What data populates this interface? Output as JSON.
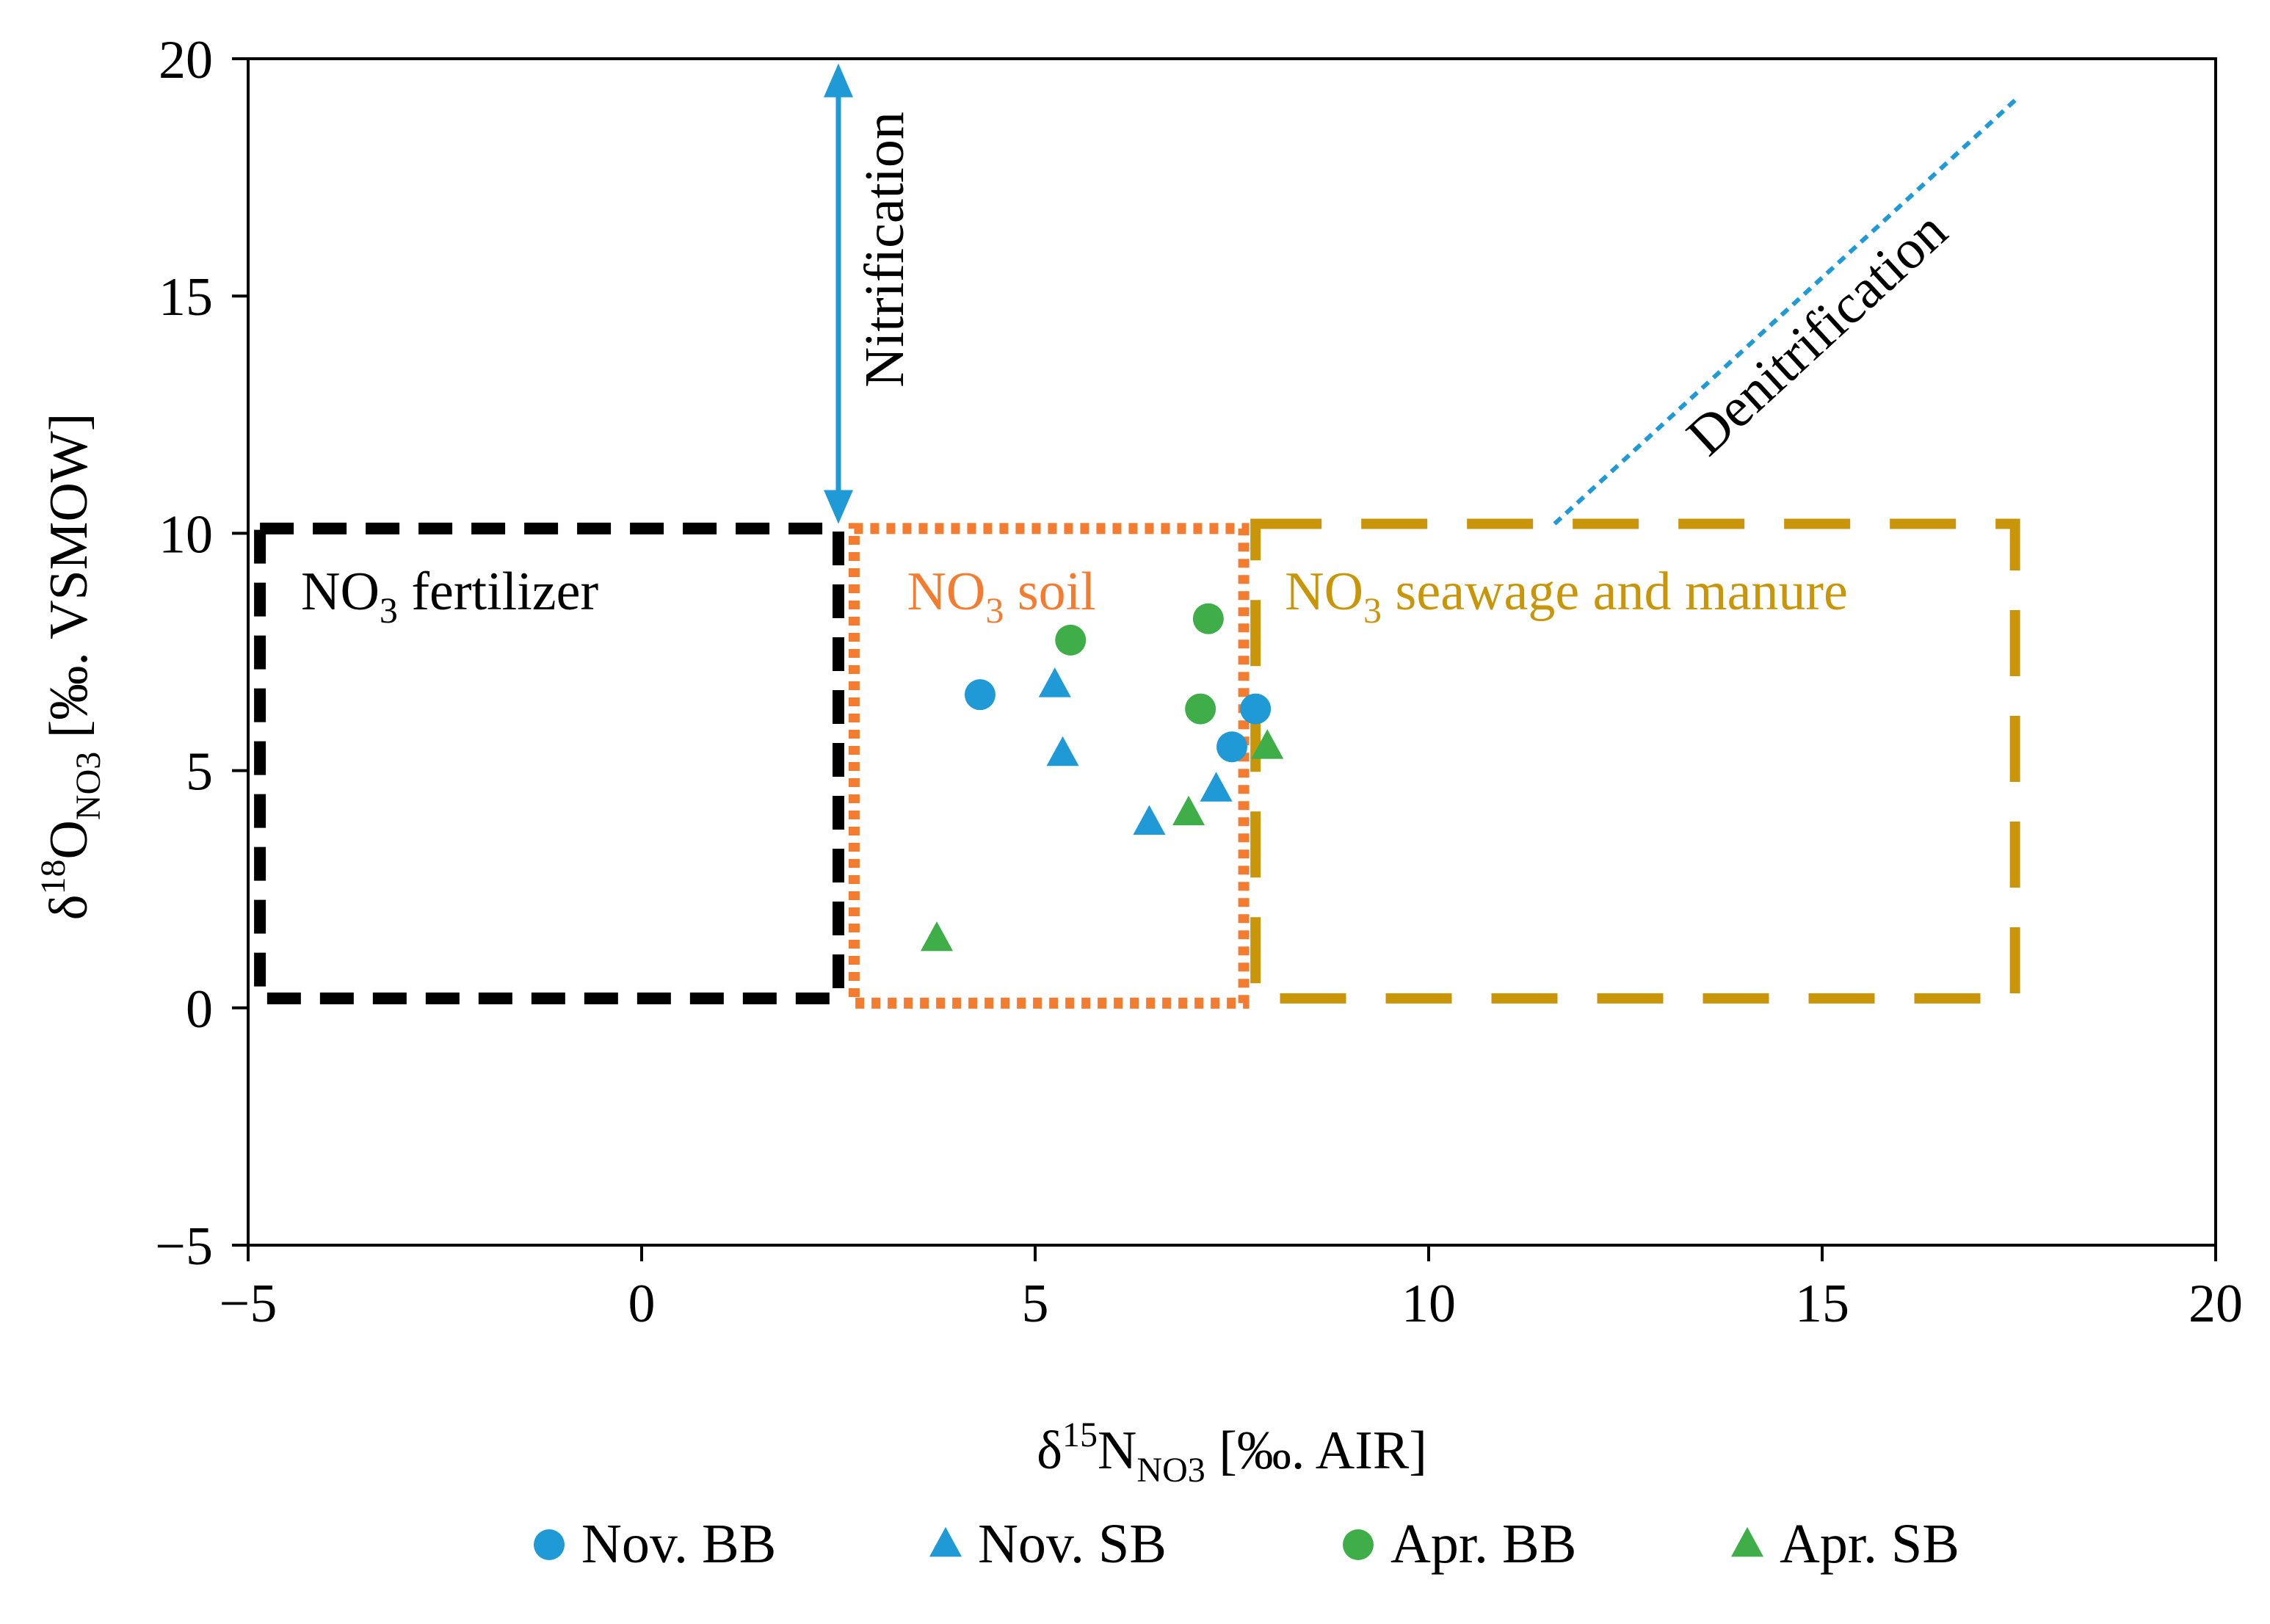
{
  "colors": {
    "nov": "#1f9ad6",
    "apr": "#3fae49",
    "axis": "#000000",
    "fertilizer": "#000000",
    "soil": "#f47c30",
    "seawage": "#c9960a",
    "nitrification": "#1f9ad6",
    "denitrification": "#1f9ad6"
  },
  "chart_data": {
    "type": "scatter",
    "title": "",
    "xlabel": {
      "prefix": "δ",
      "sup": "15",
      "main": "N",
      "sub": "NO3",
      "suffix": " [‰. AIR]"
    },
    "ylabel": {
      "prefix": "δ",
      "sup": "18",
      "main": "O",
      "sub": "NO3",
      "suffix": " [‰. VSMOW]"
    },
    "xlim": [
      -5,
      20
    ],
    "ylim": [
      -5,
      20
    ],
    "xticks": [
      -5,
      0,
      5,
      10,
      15,
      20
    ],
    "yticks": [
      -5,
      0,
      5,
      10,
      15,
      20
    ],
    "x_tick_labels": [
      "−5",
      "0",
      "5",
      "10",
      "15",
      "20"
    ],
    "y_tick_labels": [
      "−5",
      "0",
      "5",
      "10",
      "15",
      "20"
    ],
    "legend_position": "bottom",
    "series": [
      {
        "name": "Nov. BB",
        "marker": "circle",
        "color": "#1f9ad6",
        "points": [
          [
            4.3,
            6.6
          ],
          [
            7.5,
            5.5
          ],
          [
            7.8,
            6.3
          ]
        ]
      },
      {
        "name": "Nov. SB",
        "marker": "triangle",
        "color": "#1f9ad6",
        "points": [
          [
            5.25,
            6.8
          ],
          [
            5.35,
            5.35
          ],
          [
            6.45,
            3.9
          ],
          [
            7.3,
            4.6
          ]
        ]
      },
      {
        "name": "Apr. BB",
        "marker": "circle",
        "color": "#3fae49",
        "points": [
          [
            5.45,
            7.75
          ],
          [
            7.2,
            8.2
          ],
          [
            7.1,
            6.3
          ]
        ]
      },
      {
        "name": "Apr. SB",
        "marker": "triangle",
        "color": "#3fae49",
        "points": [
          [
            3.75,
            1.45
          ],
          [
            6.95,
            4.1
          ],
          [
            7.95,
            5.5
          ]
        ]
      }
    ],
    "regions": [
      {
        "name": "NO3 fertilizer",
        "label_main": "NO",
        "label_sub": "3",
        "label_rest": "  fertilizer",
        "x": [
          -4.85,
          2.5
        ],
        "y": [
          0.2,
          10.1
        ],
        "style": "dashed",
        "color": "#000000"
      },
      {
        "name": "NO3 soil",
        "label_main": "NO",
        "label_sub": "3",
        "label_rest": " soil",
        "x": [
          2.7,
          7.65
        ],
        "y": [
          0.1,
          10.1
        ],
        "style": "dotted",
        "color": "#f47c30"
      },
      {
        "name": "NO3 seawage and manure",
        "label_main": "NO",
        "label_sub": "3",
        "label_rest": " seawage and manure",
        "x": [
          7.8,
          17.45
        ],
        "y": [
          0.2,
          10.2
        ],
        "style": "longdash",
        "color": "#c9960a"
      }
    ],
    "annotations": [
      {
        "text": "Nitrification",
        "type": "double-arrow",
        "x": 2.5,
        "y": [
          10.2,
          19.9
        ]
      },
      {
        "text": "Denitrification",
        "type": "dotted-line",
        "from": [
          11.6,
          10.2
        ],
        "to": [
          17.5,
          19.2
        ]
      }
    ]
  }
}
